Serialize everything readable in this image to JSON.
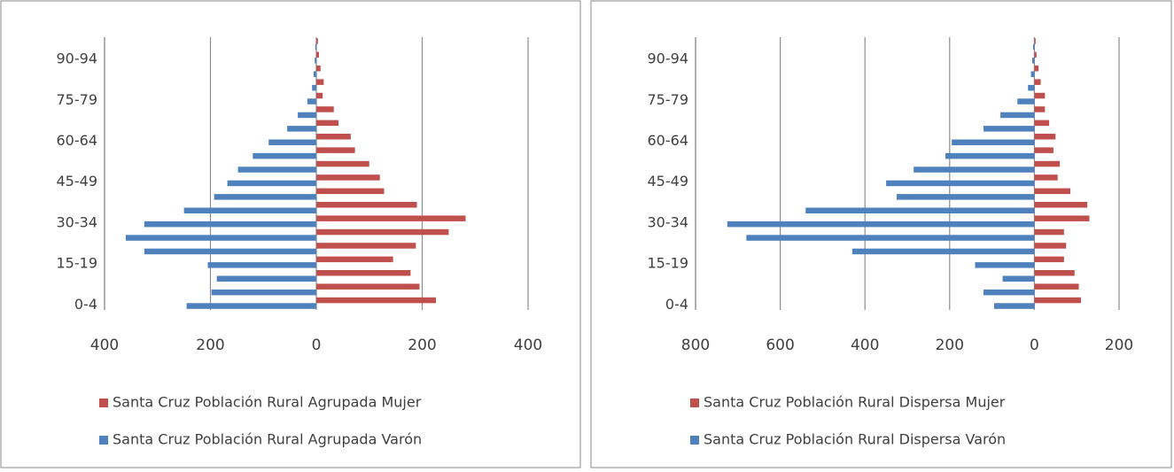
{
  "chart_data": [
    {
      "type": "bar",
      "orientation": "horizontal",
      "stacked": "overlap",
      "categories": [
        "0-4",
        null,
        null,
        "15-19",
        null,
        null,
        "30-34",
        null,
        null,
        "45-49",
        null,
        null,
        "60-64",
        null,
        null,
        "75-79",
        null,
        null,
        "90-94",
        null
      ],
      "series": [
        {
          "name": "Santa Cruz Población Rural Agrupada Mujer",
          "color": "#c0504d",
          "values": [
            226,
            195,
            178,
            145,
            188,
            250,
            282,
            190,
            128,
            120,
            100,
            73,
            65,
            42,
            33,
            12,
            14,
            8,
            5,
            3
          ]
        },
        {
          "name": "Santa Cruz Población Rural Agrupada Varón",
          "color": "#4f81bd",
          "values": [
            -245,
            -198,
            -188,
            -205,
            -325,
            -360,
            -325,
            -250,
            -193,
            -168,
            -148,
            -120,
            -90,
            -55,
            -35,
            -17,
            -8,
            -5,
            -3,
            -2
          ]
        }
      ],
      "xlim": [
        -400,
        400
      ],
      "xticks": [
        {
          "value": -400,
          "label": "400"
        },
        {
          "value": -200,
          "label": "200"
        },
        0,
        200,
        400
      ],
      "grid": true,
      "legend": "bottom"
    },
    {
      "type": "bar",
      "orientation": "horizontal",
      "stacked": "overlap",
      "categories": [
        "0-4",
        null,
        null,
        "15-19",
        null,
        null,
        "30-34",
        null,
        null,
        "45-49",
        null,
        null,
        "60-64",
        null,
        null,
        "75-79",
        null,
        null,
        "90-94",
        null
      ],
      "series": [
        {
          "name": "Santa Cruz Población  Rural Dispersa Mujer",
          "color": "#c0504d",
          "values": [
            110,
            105,
            95,
            70,
            75,
            70,
            130,
            125,
            85,
            55,
            60,
            45,
            50,
            35,
            25,
            25,
            15,
            10,
            5,
            3
          ]
        },
        {
          "name": "Santa Cruz Población  Rural Dispersa Varón",
          "color": "#4f81bd",
          "values": [
            -95,
            -120,
            -75,
            -140,
            -430,
            -680,
            -725,
            -540,
            -325,
            -350,
            -285,
            -210,
            -195,
            -120,
            -80,
            -40,
            -15,
            -8,
            -5,
            -3
          ]
        }
      ],
      "xlim": [
        -800,
        200
      ],
      "xticks": [
        {
          "value": -800,
          "label": "800"
        },
        {
          "value": -600,
          "label": "600"
        },
        {
          "value": -400,
          "label": "400"
        },
        {
          "value": -200,
          "label": "200"
        },
        0,
        200
      ],
      "grid": true,
      "legend": "bottom"
    }
  ]
}
